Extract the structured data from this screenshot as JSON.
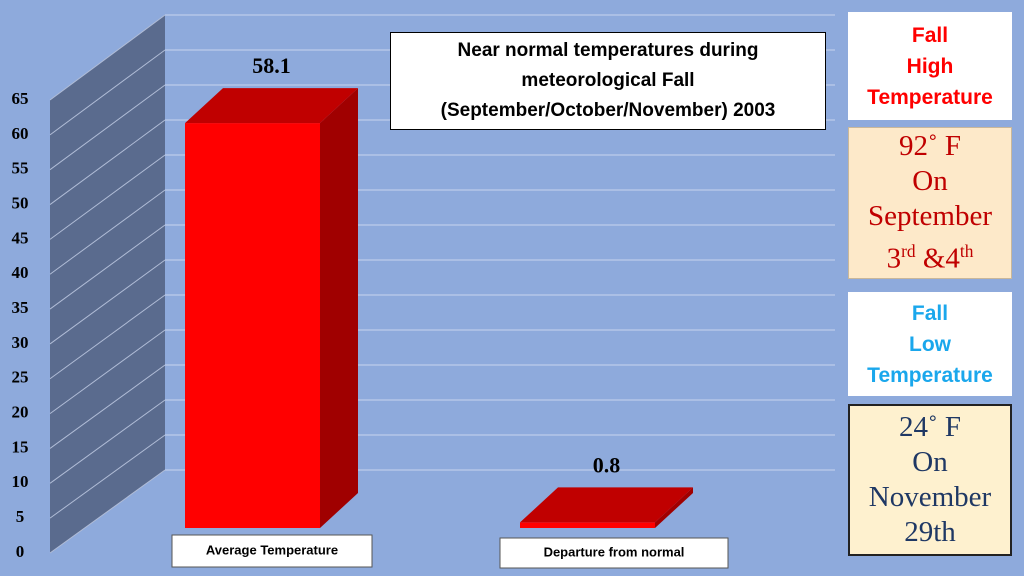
{
  "chart_data": {
    "type": "bar3d",
    "title_lines": [
      "Near normal temperatures during",
      "meteorological Fall",
      "(September/October/November) 2003"
    ],
    "categories": [
      "Average Temperature",
      "Departure from normal"
    ],
    "values": [
      58.1,
      0.8
    ],
    "color": "#ff0000",
    "ylim": [
      0,
      65
    ],
    "yticks": [
      0,
      5,
      10,
      15,
      20,
      25,
      30,
      35,
      40,
      45,
      50,
      55,
      60,
      65
    ],
    "grid": true
  },
  "high_box": {
    "heading_lines": [
      "Fall",
      "High",
      "Temperature"
    ],
    "heading_color": "#ff0000",
    "detail_lines": [
      [
        {
          "text": "92˚ F"
        }
      ],
      [
        {
          "text": "On"
        }
      ],
      [
        {
          "text": "September"
        }
      ],
      [
        {
          "text": "3"
        },
        {
          "text": "rd",
          "sup": true
        },
        {
          "text": " &4"
        },
        {
          "text": "th",
          "sup": true
        }
      ]
    ],
    "detail_color": "#c00000"
  },
  "low_box": {
    "heading_lines": [
      "Fall",
      "Low",
      "Temperature"
    ],
    "heading_color": "#1aa7ec",
    "detail_lines": [
      [
        {
          "text": "24˚ F"
        }
      ],
      [
        {
          "text": "On"
        }
      ],
      [
        {
          "text": "November"
        }
      ],
      [
        {
          "text": "29th"
        }
      ]
    ],
    "detail_color": "#1f3864"
  }
}
